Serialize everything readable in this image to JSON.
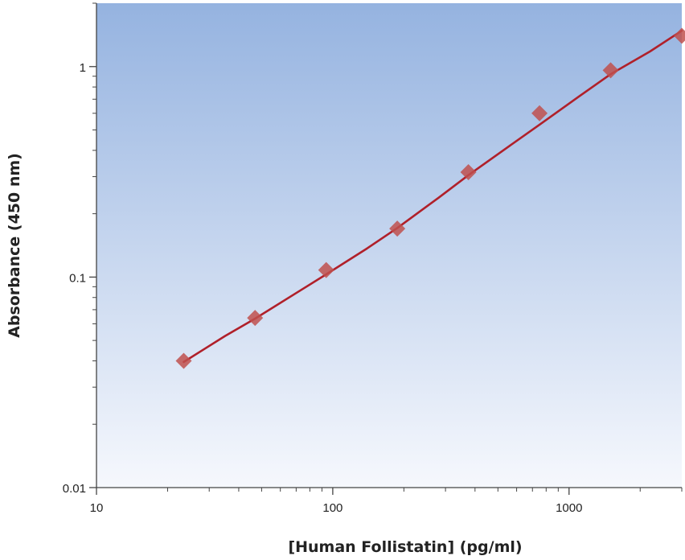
{
  "chart_data": {
    "type": "scatter",
    "title": "",
    "xlabel": "[Human Follistatin] (pg/ml)",
    "ylabel": "Absorbance (450 nm)",
    "x_scale": "log",
    "y_scale": "log",
    "xlim": [
      10,
      3000
    ],
    "ylim": [
      0.01,
      2
    ],
    "x_ticks": [
      {
        "value": 10,
        "label": "10"
      },
      {
        "value": 100,
        "label": "100"
      },
      {
        "value": 1000,
        "label": "1000"
      }
    ],
    "y_ticks": [
      {
        "value": 0.01,
        "label": "0.01"
      },
      {
        "value": 0.1,
        "label": "0.1"
      },
      {
        "value": 1,
        "label": "1"
      }
    ],
    "grid": false,
    "legend": "none",
    "series": [
      {
        "marker": "diamond",
        "color": "#c0504d",
        "x": [
          23.4,
          46.9,
          93.8,
          187.5,
          375,
          750,
          1500,
          3000
        ],
        "y": [
          0.04,
          0.064,
          0.108,
          0.17,
          0.315,
          0.6,
          0.96,
          1.4
        ]
      }
    ],
    "fit_line": {
      "color": "#b0202a",
      "x": [
        23.4,
        35,
        46.9,
        70,
        93.8,
        140,
        187.5,
        280,
        375,
        560,
        750,
        1100,
        1500,
        2200,
        3000
      ],
      "y": [
        0.0395,
        0.0525,
        0.0635,
        0.084,
        0.103,
        0.137,
        0.171,
        0.238,
        0.305,
        0.42,
        0.53,
        0.72,
        0.92,
        1.18,
        1.48
      ]
    },
    "colors": {
      "plot_top": "#95b3e0",
      "plot_bottom": "#f6f8fd",
      "axis": "#444444"
    }
  }
}
